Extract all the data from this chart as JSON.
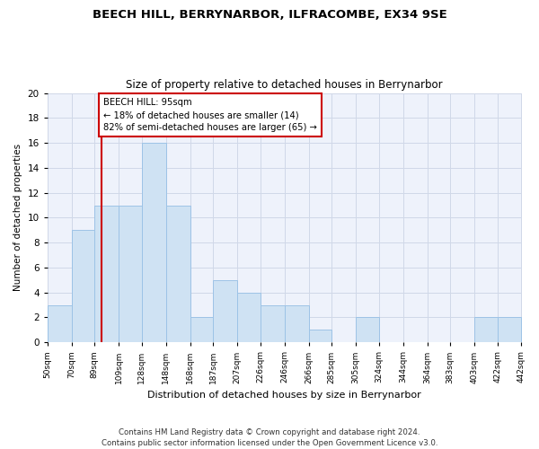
{
  "title1": "BEECH HILL, BERRYNARBOR, ILFRACOMBE, EX34 9SE",
  "title2": "Size of property relative to detached houses in Berrynarbor",
  "xlabel": "Distribution of detached houses by size in Berrynarbor",
  "ylabel": "Number of detached properties",
  "bin_edges": [
    50,
    70,
    89,
    109,
    128,
    148,
    168,
    187,
    207,
    226,
    246,
    266,
    285,
    305,
    324,
    344,
    364,
    383,
    403,
    422,
    442
  ],
  "bin_counts": [
    3,
    9,
    11,
    11,
    16,
    11,
    2,
    5,
    4,
    3,
    3,
    1,
    0,
    2,
    0,
    0,
    0,
    0,
    2,
    2
  ],
  "bar_color": "#cfe2f3",
  "bar_edge_color": "#9dc3e6",
  "grid_color": "#d0d8e8",
  "vline_x": 95,
  "vline_color": "#cc0000",
  "annotation_text": "BEECH HILL: 95sqm\n← 18% of detached houses are smaller (14)\n82% of semi-detached houses are larger (65) →",
  "annotation_box_color": "#cc0000",
  "ylim": [
    0,
    20
  ],
  "yticks": [
    0,
    2,
    4,
    6,
    8,
    10,
    12,
    14,
    16,
    18,
    20
  ],
  "tick_labels": [
    "50sqm",
    "70sqm",
    "89sqm",
    "109sqm",
    "128sqm",
    "148sqm",
    "168sqm",
    "187sqm",
    "207sqm",
    "226sqm",
    "246sqm",
    "266sqm",
    "285sqm",
    "305sqm",
    "324sqm",
    "344sqm",
    "364sqm",
    "383sqm",
    "403sqm",
    "422sqm",
    "442sqm"
  ],
  "footer_text": "Contains HM Land Registry data © Crown copyright and database right 2024.\nContains public sector information licensed under the Open Government Licence v3.0.",
  "bg_color": "#eef2fb"
}
